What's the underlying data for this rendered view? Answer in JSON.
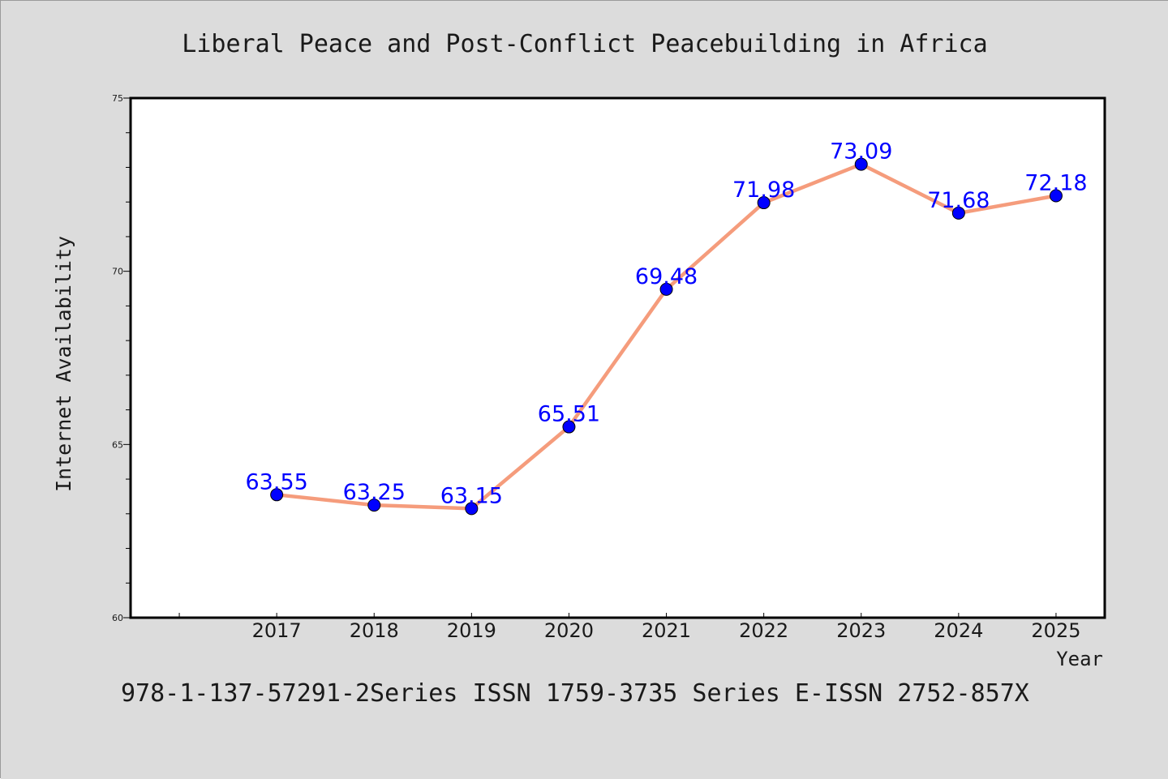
{
  "chart_data": {
    "type": "line",
    "title": "Liberal Peace and Post-Conflict Peacebuilding in Africa",
    "xlabel": "Year",
    "ylabel": "Internet Availability",
    "footer": "978-1-137-57291-2Series ISSN 1759-3735 Series E-ISSN 2752-857X",
    "categories": [
      "2017",
      "2018",
      "2019",
      "2020",
      "2021",
      "2022",
      "2023",
      "2024",
      "2025"
    ],
    "values": [
      63.55,
      63.25,
      63.15,
      65.51,
      69.48,
      71.98,
      73.09,
      71.68,
      72.18
    ],
    "data_labels": [
      "63.55",
      "63.25",
      "63.15",
      "65.51",
      "69.48",
      "71.98",
      "73.09",
      "71.68",
      "72.18"
    ],
    "yticks": [
      "60",
      "65",
      "70",
      "75"
    ],
    "ylim": [
      60,
      75
    ],
    "grid": false,
    "colors": {
      "background": "#dcdcdc",
      "plot_background": "#ffffff",
      "line": "#f59c7c",
      "marker": "#0000ff",
      "data_label": "#0000ff",
      "text": "#1a1a1a"
    }
  }
}
